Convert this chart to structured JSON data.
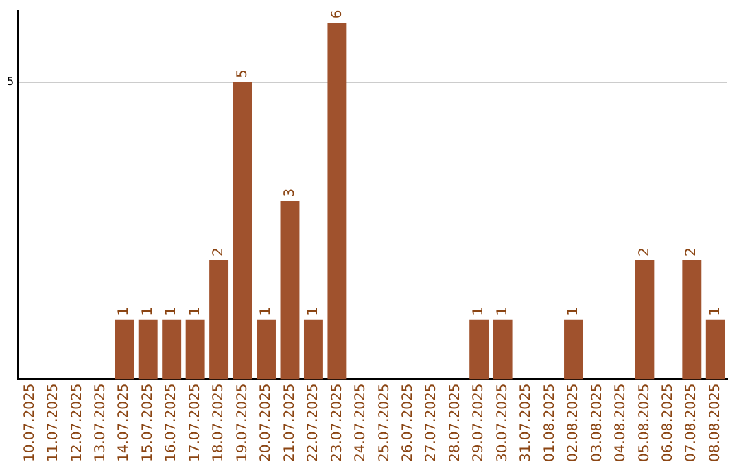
{
  "chart_data": {
    "type": "bar",
    "categories": [
      "10.07.2025",
      "11.07.2025",
      "12.07.2025",
      "13.07.2025",
      "14.07.2025",
      "15.07.2025",
      "16.07.2025",
      "17.07.2025",
      "18.07.2025",
      "19.07.2025",
      "20.07.2025",
      "21.07.2025",
      "22.07.2025",
      "23.07.2025",
      "24.07.2025",
      "25.07.2025",
      "26.07.2025",
      "27.07.2025",
      "28.07.2025",
      "29.07.2025",
      "30.07.2025",
      "31.07.2025",
      "01.08.2025",
      "02.08.2025",
      "03.08.2025",
      "04.08.2025",
      "05.08.2025",
      "06.08.2025",
      "07.08.2025",
      "08.08.2025"
    ],
    "values": [
      0,
      0,
      0,
      0,
      1,
      1,
      1,
      1,
      2,
      5,
      1,
      3,
      1,
      6,
      0,
      0,
      0,
      0,
      0,
      1,
      1,
      0,
      0,
      1,
      0,
      0,
      2,
      0,
      2,
      1
    ],
    "value_labels": [
      null,
      null,
      null,
      null,
      "1",
      "1",
      "1",
      "1",
      "2",
      "5",
      "1",
      "3",
      "1",
      "6",
      null,
      null,
      null,
      null,
      null,
      "1",
      "1",
      null,
      null,
      "1",
      null,
      null,
      "2",
      null,
      "2",
      "1"
    ],
    "color": "#a0522d",
    "ylim": [
      0,
      6.2
    ],
    "yticks": [
      5
    ],
    "grid": "y",
    "legend": false
  }
}
